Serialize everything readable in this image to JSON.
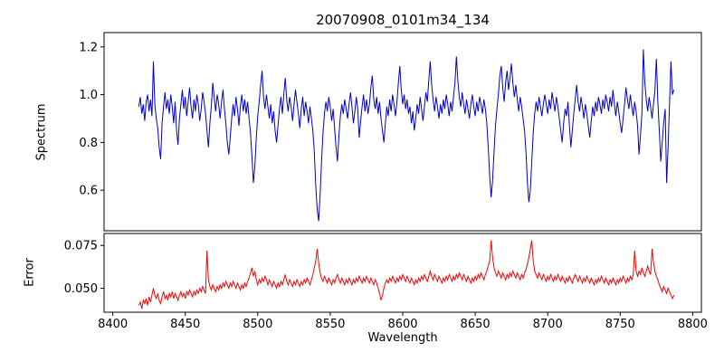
{
  "chart_data": [
    {
      "type": "line",
      "title": "20070908_0101m34_134",
      "ylabel": "Spectrum",
      "color": "#0000cd",
      "grid": false,
      "legend": null,
      "x_start": 8418,
      "x_step": 1,
      "xlim": [
        8394,
        8806
      ],
      "ylim": [
        0.43,
        1.26
      ],
      "ytick_values": [
        0.6,
        0.8,
        1.0,
        1.2
      ],
      "yticks": [
        "0.6",
        "0.8",
        "1.0",
        "1.2"
      ],
      "values": [
        0.95,
        0.99,
        0.92,
        0.96,
        0.89,
        0.97,
        1.0,
        0.93,
        0.98,
        0.91,
        1.14,
        0.96,
        0.9,
        0.86,
        0.78,
        0.73,
        0.88,
        0.95,
        1.01,
        0.94,
        0.98,
        0.92,
        1.0,
        0.95,
        0.88,
        0.97,
        0.85,
        0.79,
        0.9,
        0.96,
        1.02,
        0.94,
        0.99,
        0.91,
        0.97,
        1.03,
        0.95,
        0.9,
        0.98,
        0.93,
        1.0,
        0.96,
        0.89,
        0.94,
        1.01,
        0.97,
        0.92,
        0.85,
        0.78,
        0.88,
        0.95,
        1.05,
        0.99,
        0.93,
        1.0,
        0.96,
        0.9,
        0.97,
        1.02,
        0.94,
        0.88,
        0.8,
        0.75,
        0.82,
        0.9,
        0.96,
        0.91,
        0.99,
        0.94,
        0.87,
        0.95,
        1.0,
        0.93,
        0.98,
        0.92,
        0.97,
        0.9,
        0.84,
        0.74,
        0.63,
        0.7,
        0.82,
        0.91,
        0.97,
        1.04,
        1.1,
        0.99,
        0.94,
        1.0,
        0.95,
        0.9,
        0.96,
        0.88,
        0.93,
        0.85,
        0.8,
        0.87,
        0.94,
        0.99,
        0.92,
        1.0,
        1.07,
        0.98,
        0.93,
        0.99,
        0.95,
        0.89,
        0.96,
        1.02,
        0.97,
        0.92,
        0.86,
        0.94,
        0.99,
        0.91,
        0.97,
        0.93,
        0.88,
        0.95,
        0.9,
        0.85,
        0.76,
        0.62,
        0.52,
        0.47,
        0.58,
        0.72,
        0.84,
        0.92,
        0.97,
        0.93,
        0.99,
        0.95,
        0.89,
        0.94,
        0.86,
        0.78,
        0.72,
        0.83,
        0.91,
        0.96,
        0.92,
        0.98,
        0.94,
        0.9,
        0.96,
        1.01,
        0.95,
        0.88,
        0.93,
        0.99,
        0.94,
        0.82,
        0.89,
        0.95,
        1.0,
        0.93,
        0.98,
        0.92,
        0.96,
        1.03,
        1.08,
        0.98,
        0.94,
        0.99,
        0.92,
        0.97,
        0.9,
        0.85,
        0.8,
        0.88,
        0.95,
        0.91,
        0.98,
        0.93,
        1.0,
        0.96,
        0.91,
        0.97,
        1.05,
        1.12,
        1.02,
        0.96,
        1.0,
        0.94,
        0.98,
        0.92,
        0.95,
        0.88,
        0.93,
        0.85,
        0.9,
        0.96,
        0.92,
        0.99,
        0.94,
        0.89,
        0.95,
        1.01,
        0.97,
        1.06,
        1.14,
        1.04,
        0.98,
        0.93,
        0.99,
        0.95,
        0.9,
        0.96,
        0.92,
        0.98,
        0.94,
        1.0,
        0.96,
        0.91,
        0.97,
        0.93,
        0.99,
        1.05,
        1.16,
        1.06,
        0.99,
        0.95,
        1.01,
        0.96,
        0.92,
        0.98,
        0.94,
        0.9,
        0.96,
        1.0,
        0.95,
        0.91,
        0.97,
        0.93,
        0.99,
        0.96,
        0.92,
        0.98,
        0.94,
        0.88,
        0.78,
        0.66,
        0.57,
        0.64,
        0.76,
        0.87,
        0.94,
        1.0,
        1.08,
        1.12,
        1.03,
        0.97,
        1.05,
        1.1,
        1.02,
        1.07,
        1.13,
        1.05,
        0.99,
        1.04,
        0.98,
        0.93,
        0.99,
        0.95,
        0.9,
        0.85,
        0.76,
        0.63,
        0.55,
        0.6,
        0.72,
        0.84,
        0.92,
        0.97,
        0.93,
        0.99,
        0.95,
        0.91,
        0.96,
        1.0,
        0.96,
        0.92,
        0.98,
        0.94,
        1.01,
        0.97,
        0.93,
        0.99,
        0.95,
        0.9,
        0.85,
        0.8,
        0.88,
        0.94,
        0.91,
        0.97,
        0.87,
        0.78,
        0.85,
        0.92,
        0.98,
        1.04,
        0.97,
        0.93,
        0.99,
        0.95,
        0.9,
        0.96,
        0.92,
        0.87,
        0.82,
        0.89,
        0.95,
        0.91,
        0.97,
        0.93,
        0.99,
        0.96,
        0.92,
        0.98,
        0.94,
        1.0,
        0.97,
        0.93,
        0.99,
        0.95,
        1.02,
        0.96,
        0.91,
        0.97,
        0.93,
        0.88,
        0.84,
        0.9,
        0.96,
        1.03,
        0.98,
        0.94,
        1.0,
        0.95,
        0.91,
        0.97,
        0.93,
        0.87,
        0.75,
        0.83,
        0.92,
        1.19,
        1.05,
        0.98,
        0.93,
        0.99,
        0.95,
        0.9,
        0.96,
        1.02,
        1.15,
        0.97,
        0.85,
        0.72,
        0.8,
        0.88,
        0.94,
        0.63,
        0.78,
        0.96,
        1.14,
        1.0,
        1.02
      ]
    },
    {
      "type": "line",
      "ylabel": "Error",
      "xlabel": "Wavelength",
      "color": "#ff0000",
      "grid": false,
      "legend": null,
      "x_start": 8418,
      "x_step": 1,
      "xlim": [
        8394,
        8806
      ],
      "ylim": [
        0.036,
        0.082
      ],
      "ytick_values": [
        0.05,
        0.075
      ],
      "yticks": [
        "0.050",
        "0.075"
      ],
      "xtick_values": [
        8400,
        8450,
        8500,
        8550,
        8600,
        8650,
        8700,
        8750,
        8800
      ],
      "xticks": [
        "8400",
        "8450",
        "8500",
        "8550",
        "8600",
        "8650",
        "8700",
        "8750",
        "8800"
      ],
      "values": [
        0.04,
        0.042,
        0.038,
        0.043,
        0.041,
        0.044,
        0.04,
        0.045,
        0.042,
        0.046,
        0.05,
        0.046,
        0.044,
        0.047,
        0.043,
        0.041,
        0.045,
        0.048,
        0.044,
        0.046,
        0.043,
        0.047,
        0.045,
        0.048,
        0.044,
        0.047,
        0.045,
        0.043,
        0.046,
        0.048,
        0.045,
        0.047,
        0.044,
        0.048,
        0.046,
        0.049,
        0.047,
        0.045,
        0.048,
        0.046,
        0.049,
        0.047,
        0.05,
        0.048,
        0.051,
        0.049,
        0.047,
        0.072,
        0.055,
        0.051,
        0.049,
        0.052,
        0.05,
        0.048,
        0.051,
        0.049,
        0.052,
        0.05,
        0.053,
        0.051,
        0.054,
        0.052,
        0.05,
        0.053,
        0.051,
        0.054,
        0.052,
        0.05,
        0.053,
        0.051,
        0.049,
        0.052,
        0.05,
        0.053,
        0.051,
        0.054,
        0.056,
        0.059,
        0.062,
        0.057,
        0.06,
        0.055,
        0.052,
        0.055,
        0.053,
        0.056,
        0.054,
        0.057,
        0.055,
        0.052,
        0.055,
        0.053,
        0.051,
        0.054,
        0.052,
        0.05,
        0.053,
        0.051,
        0.054,
        0.052,
        0.055,
        0.058,
        0.054,
        0.052,
        0.055,
        0.053,
        0.051,
        0.054,
        0.052,
        0.055,
        0.053,
        0.051,
        0.054,
        0.052,
        0.055,
        0.053,
        0.056,
        0.054,
        0.052,
        0.055,
        0.058,
        0.062,
        0.066,
        0.073,
        0.065,
        0.059,
        0.056,
        0.054,
        0.057,
        0.055,
        0.053,
        0.056,
        0.054,
        0.052,
        0.055,
        0.053,
        0.056,
        0.058,
        0.055,
        0.053,
        0.056,
        0.054,
        0.052,
        0.055,
        0.053,
        0.056,
        0.054,
        0.052,
        0.055,
        0.053,
        0.056,
        0.054,
        0.057,
        0.055,
        0.053,
        0.056,
        0.054,
        0.057,
        0.055,
        0.053,
        0.056,
        0.054,
        0.052,
        0.055,
        0.053,
        0.05,
        0.047,
        0.043,
        0.046,
        0.05,
        0.053,
        0.055,
        0.053,
        0.056,
        0.054,
        0.057,
        0.055,
        0.053,
        0.056,
        0.054,
        0.057,
        0.055,
        0.058,
        0.056,
        0.054,
        0.057,
        0.055,
        0.053,
        0.056,
        0.054,
        0.052,
        0.055,
        0.053,
        0.056,
        0.054,
        0.057,
        0.055,
        0.058,
        0.056,
        0.054,
        0.057,
        0.06,
        0.057,
        0.055,
        0.058,
        0.056,
        0.054,
        0.057,
        0.055,
        0.053,
        0.056,
        0.054,
        0.057,
        0.055,
        0.058,
        0.056,
        0.054,
        0.057,
        0.055,
        0.058,
        0.056,
        0.059,
        0.057,
        0.055,
        0.058,
        0.056,
        0.054,
        0.057,
        0.055,
        0.053,
        0.056,
        0.054,
        0.057,
        0.055,
        0.058,
        0.056,
        0.059,
        0.057,
        0.055,
        0.058,
        0.06,
        0.063,
        0.066,
        0.078,
        0.068,
        0.062,
        0.059,
        0.057,
        0.06,
        0.058,
        0.056,
        0.059,
        0.057,
        0.055,
        0.058,
        0.056,
        0.059,
        0.057,
        0.06,
        0.058,
        0.056,
        0.059,
        0.057,
        0.055,
        0.058,
        0.056,
        0.059,
        0.061,
        0.064,
        0.068,
        0.073,
        0.078,
        0.066,
        0.06,
        0.058,
        0.056,
        0.059,
        0.057,
        0.055,
        0.058,
        0.056,
        0.054,
        0.057,
        0.055,
        0.058,
        0.056,
        0.054,
        0.057,
        0.055,
        0.058,
        0.056,
        0.054,
        0.057,
        0.055,
        0.053,
        0.056,
        0.054,
        0.057,
        0.055,
        0.053,
        0.056,
        0.058,
        0.056,
        0.054,
        0.057,
        0.055,
        0.053,
        0.056,
        0.054,
        0.057,
        0.055,
        0.053,
        0.056,
        0.054,
        0.052,
        0.055,
        0.053,
        0.056,
        0.054,
        0.057,
        0.055,
        0.053,
        0.056,
        0.054,
        0.052,
        0.055,
        0.053,
        0.056,
        0.054,
        0.052,
        0.055,
        0.053,
        0.056,
        0.054,
        0.057,
        0.055,
        0.053,
        0.056,
        0.054,
        0.057,
        0.055,
        0.058,
        0.072,
        0.06,
        0.057,
        0.06,
        0.058,
        0.062,
        0.059,
        0.057,
        0.06,
        0.063,
        0.06,
        0.058,
        0.073,
        0.065,
        0.06,
        0.057,
        0.055,
        0.052,
        0.05,
        0.048,
        0.051,
        0.049,
        0.047,
        0.05,
        0.048,
        0.046,
        0.044,
        0.046
      ]
    }
  ]
}
